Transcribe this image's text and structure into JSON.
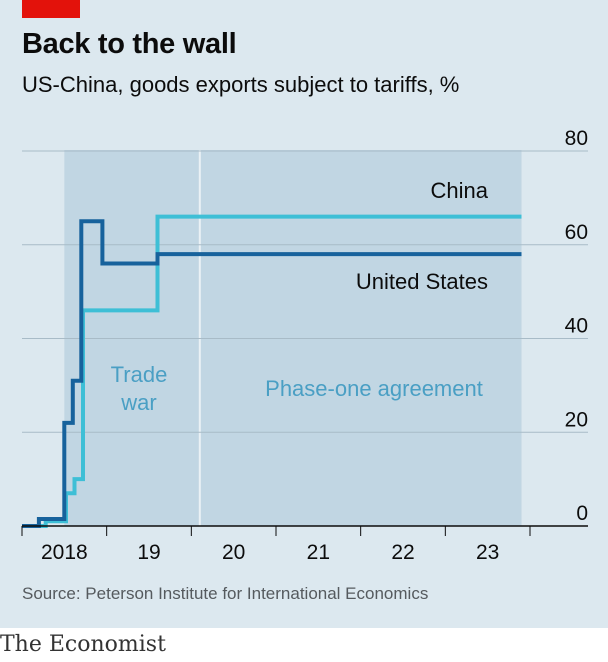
{
  "header": {
    "title": "Back to the wall",
    "subtitle": "US-China, goods exports subject to tariffs, %"
  },
  "footer": {
    "source": "Source: Peterson Institute for International Economics",
    "brand": "The Economist"
  },
  "colors": {
    "panel": "#dce8ef",
    "band": "#c1d6e3",
    "grid": "#a8bbc7",
    "china": "#3ebfd6",
    "united_states": "#17629c",
    "annotation": "#4a9fc4",
    "brand_red": "#e3120b"
  },
  "chart_data": {
    "type": "line",
    "title": "Back to the wall",
    "subtitle": "US-China, goods exports subject to tariffs, %",
    "x_unit": "year",
    "xlim": [
      2018.0,
      2024.0
    ],
    "ylim": [
      0,
      80
    ],
    "yticks": [
      0,
      20,
      40,
      60,
      80
    ],
    "xticks": [
      {
        "label": "2018",
        "value": 2018.5
      },
      {
        "label": "19",
        "value": 2019.5
      },
      {
        "label": "20",
        "value": 2020.5
      },
      {
        "label": "21",
        "value": 2021.5
      },
      {
        "label": "22",
        "value": 2022.5
      },
      {
        "label": "23",
        "value": 2023.5
      }
    ],
    "grid": true,
    "shaded_periods": [
      {
        "label_lines": [
          "Trade",
          "war"
        ],
        "start": 2018.5,
        "end": 2020.1
      },
      {
        "label_lines": [
          "Phase-one agreement"
        ],
        "start": 2020.1,
        "end": 2023.9
      }
    ],
    "series": [
      {
        "name": "United States",
        "step": true,
        "points": [
          [
            2018.0,
            0
          ],
          [
            2018.2,
            1.5
          ],
          [
            2018.5,
            22
          ],
          [
            2018.6,
            31
          ],
          [
            2018.7,
            65
          ],
          [
            2018.95,
            56
          ],
          [
            2019.6,
            58
          ],
          [
            2023.9,
            58
          ]
        ]
      },
      {
        "name": "China",
        "step": true,
        "points": [
          [
            2018.0,
            0
          ],
          [
            2018.28,
            1
          ],
          [
            2018.52,
            7
          ],
          [
            2018.62,
            10
          ],
          [
            2018.72,
            46
          ],
          [
            2019.6,
            66
          ],
          [
            2023.9,
            66
          ]
        ]
      }
    ]
  }
}
